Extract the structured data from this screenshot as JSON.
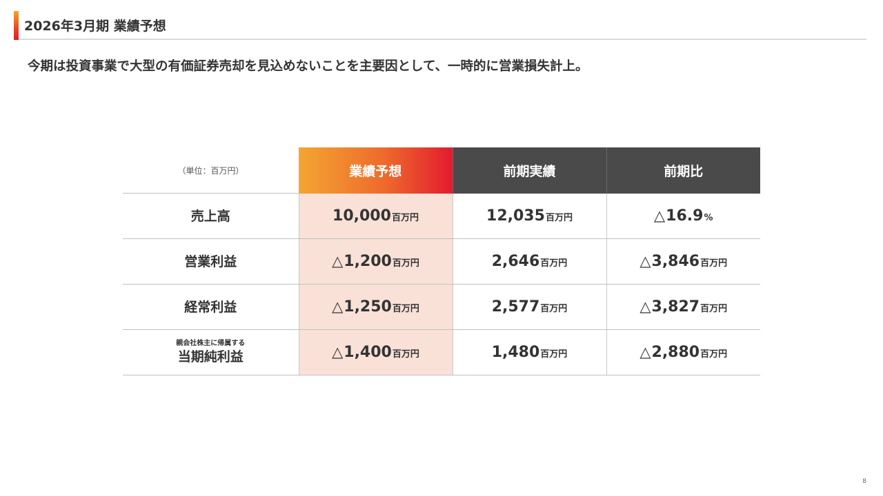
{
  "header": {
    "title": "2026年3月期 業績予想",
    "accent_gradient": [
      "#f5a623",
      "#e8462a",
      "#e01b2f"
    ]
  },
  "lead_text": "今期は投資事業で大型の有価証券売却を見込めないことを主要因として、一時的に営業損失計上。",
  "table": {
    "unit_note": "（単位：百万円）",
    "columns": [
      "業績予想",
      "前期実績",
      "前期比"
    ],
    "rows": [
      {
        "label_sub": "",
        "label": "売上高",
        "forecast": {
          "tri": "",
          "value": "10,000",
          "unit": "百万円"
        },
        "previous": {
          "tri": "",
          "value": "12,035",
          "unit": "百万円"
        },
        "change": {
          "tri": "△",
          "value": "16.9",
          "unit": "%"
        }
      },
      {
        "label_sub": "",
        "label": "営業利益",
        "forecast": {
          "tri": "△",
          "value": "1,200",
          "unit": "百万円"
        },
        "previous": {
          "tri": "",
          "value": "2,646",
          "unit": "百万円"
        },
        "change": {
          "tri": "△",
          "value": "3,846",
          "unit": "百万円"
        }
      },
      {
        "label_sub": "",
        "label": "経常利益",
        "forecast": {
          "tri": "△",
          "value": "1,250",
          "unit": "百万円"
        },
        "previous": {
          "tri": "",
          "value": "2,577",
          "unit": "百万円"
        },
        "change": {
          "tri": "△",
          "value": "3,827",
          "unit": "百万円"
        }
      },
      {
        "label_sub": "親会社株主に帰属する",
        "label": "当期純利益",
        "forecast": {
          "tri": "△",
          "value": "1,400",
          "unit": "百万円"
        },
        "previous": {
          "tri": "",
          "value": "1,480",
          "unit": "百万円"
        },
        "change": {
          "tri": "△",
          "value": "2,880",
          "unit": "百万円"
        }
      }
    ],
    "colors": {
      "forecast_header": [
        "#f4a532",
        "#e31b2f"
      ],
      "dark_header": "#4a4a4a",
      "forecast_cell_bg": "#f9e1d8"
    }
  },
  "page_number": "8"
}
